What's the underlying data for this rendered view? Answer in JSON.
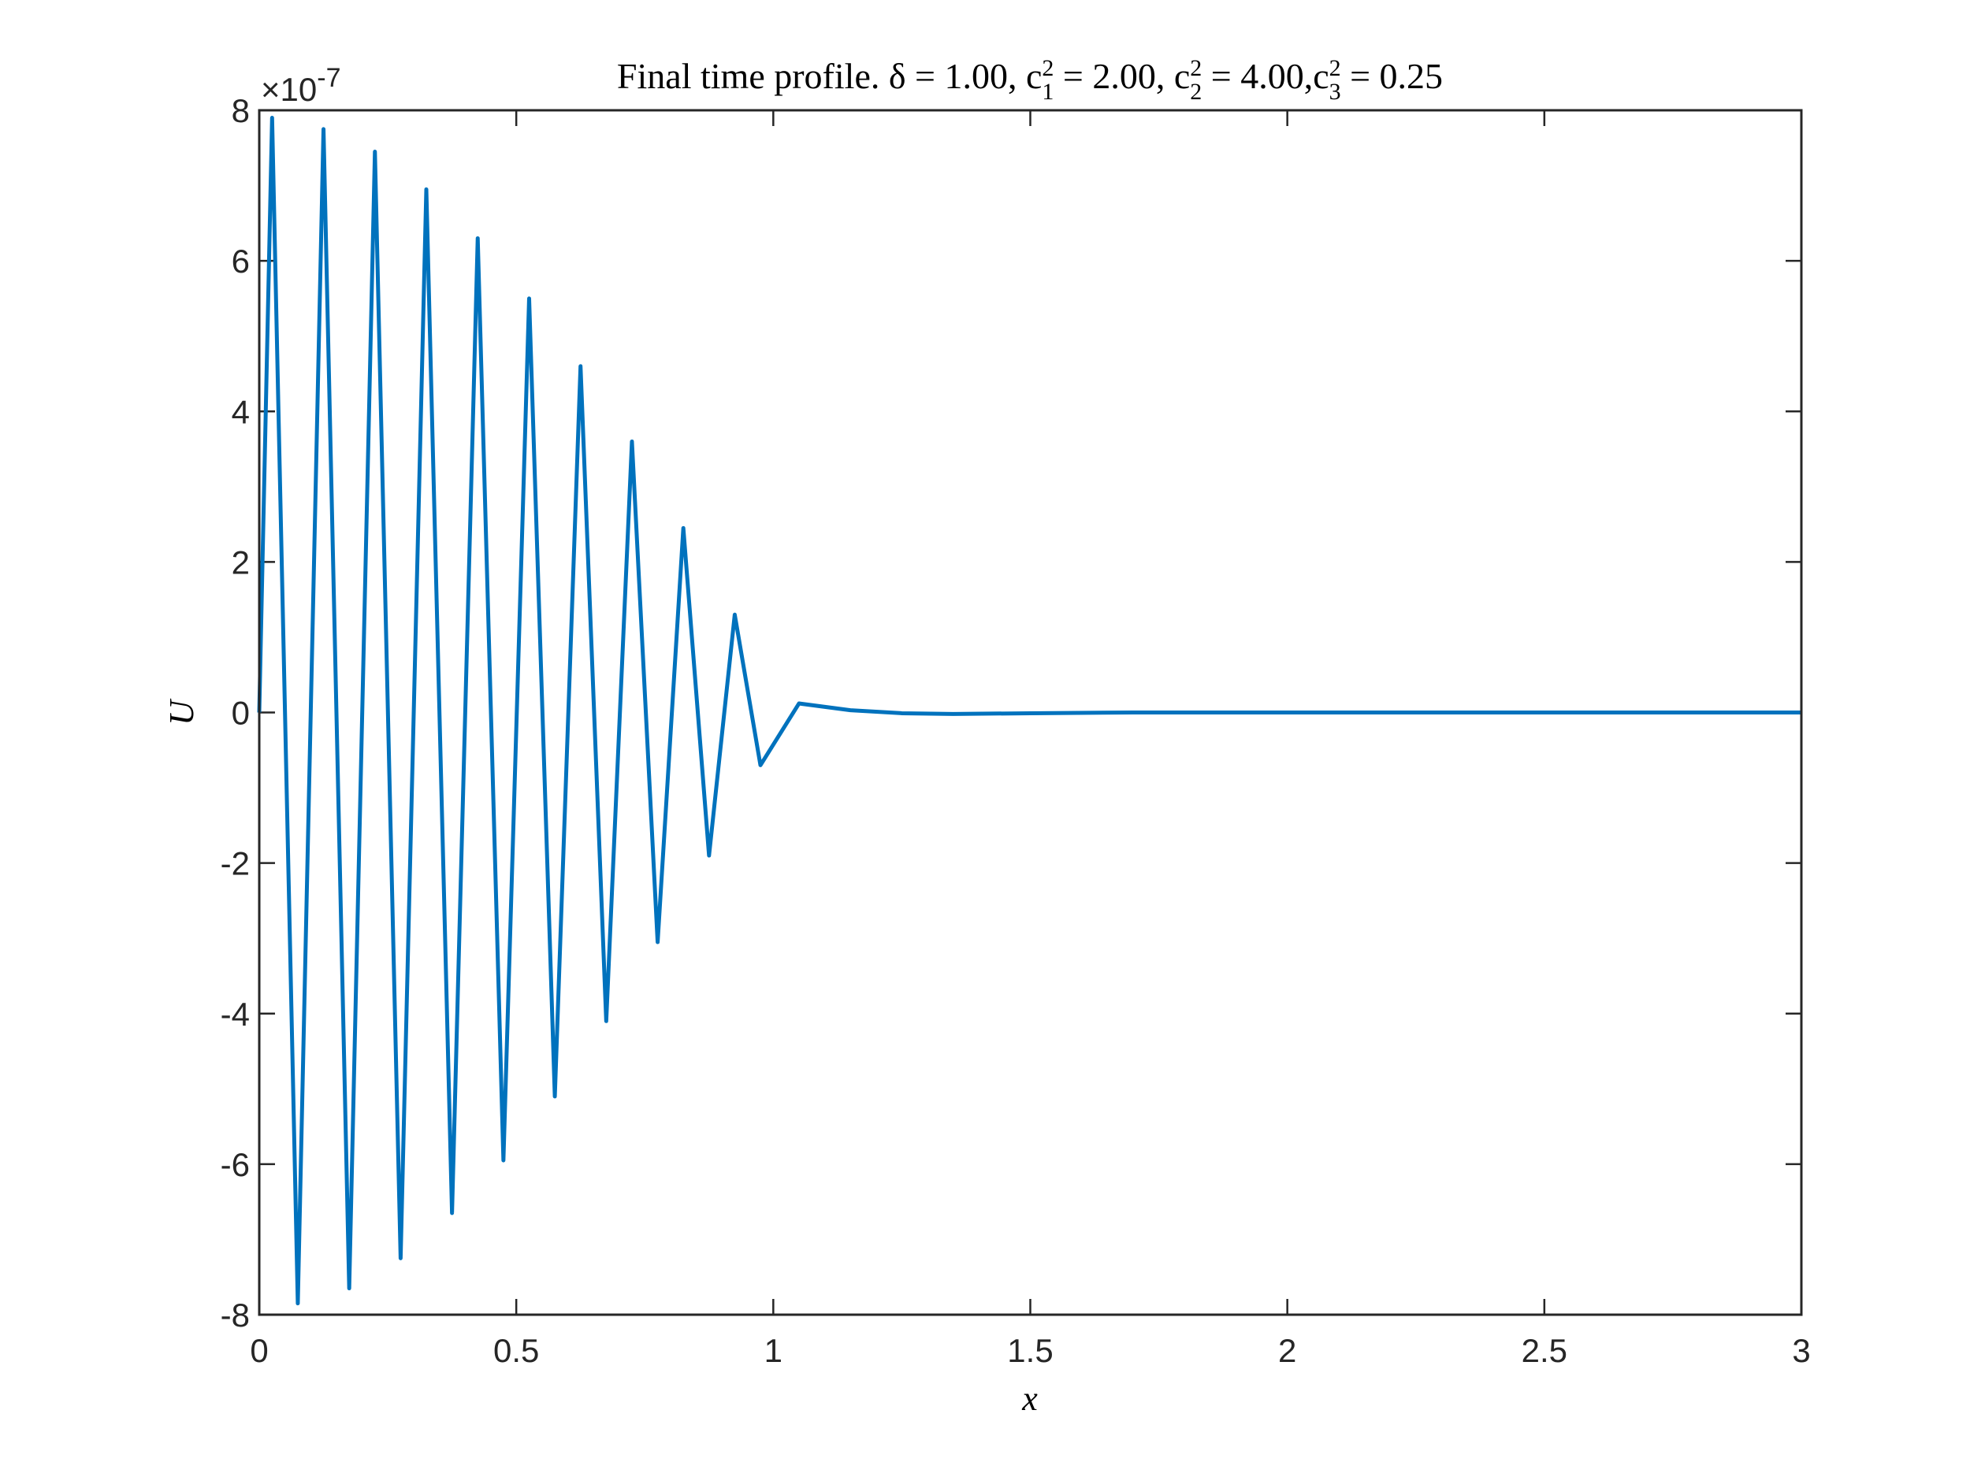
{
  "chart_data": {
    "type": "line",
    "title": [
      {
        "text": "Final time profile. δ = 1.00, c",
        "style": "normal"
      },
      {
        "text": "2",
        "style": "sup"
      },
      {
        "text": "1",
        "style": "sub"
      },
      {
        "text": " = 2.00, c",
        "style": "normal"
      },
      {
        "text": "2",
        "style": "sup"
      },
      {
        "text": "2",
        "style": "sub"
      },
      {
        "text": " = 4.00,c",
        "style": "normal"
      },
      {
        "text": "2",
        "style": "sup"
      },
      {
        "text": "3",
        "style": "sub"
      },
      {
        "text": " = 0.25",
        "style": "normal"
      }
    ],
    "x_label": "x",
    "y_label": "U",
    "y_multiplier": {
      "base": "×10",
      "exponent": "-7"
    },
    "x": [
      0,
      0.025,
      0.075,
      0.125,
      0.175,
      0.225,
      0.275,
      0.325,
      0.375,
      0.425,
      0.475,
      0.525,
      0.575,
      0.625,
      0.675,
      0.725,
      0.775,
      0.825,
      0.875,
      0.925,
      0.975,
      1.05,
      1.15,
      1.25,
      1.35,
      1.5,
      1.7,
      3
    ],
    "series": [
      {
        "name": "U",
        "color": "#0072bd",
        "values": [
          0,
          7.9,
          -7.85,
          7.75,
          -7.65,
          7.45,
          -7.25,
          6.95,
          -6.65,
          6.3,
          -5.95,
          5.5,
          -5.1,
          4.6,
          -4.1,
          3.6,
          -3.05,
          2.45,
          -1.9,
          1.3,
          -0.7,
          0.12,
          0.03,
          -0.01,
          -0.02,
          -0.01,
          0,
          0
        ]
      }
    ],
    "xlim": [
      0,
      3
    ],
    "xticks": [
      0,
      0.5,
      1,
      1.5,
      2,
      2.5,
      3
    ],
    "ylim": [
      -8,
      8
    ],
    "yticks": [
      -8,
      -6,
      -4,
      -2,
      0,
      2,
      4,
      6,
      8
    ],
    "grid": false
  }
}
